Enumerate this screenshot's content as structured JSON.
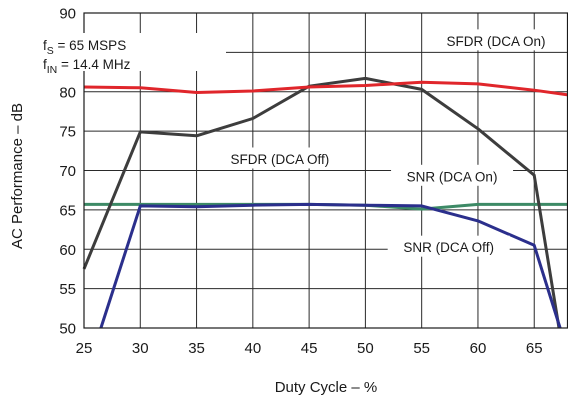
{
  "chart_data": {
    "type": "line",
    "xlabel": "Duty Cycle – %",
    "ylabel": "AC Performance – dB",
    "xlim": [
      25,
      68
    ],
    "ylim": [
      50,
      90
    ],
    "xticks": [
      25,
      30,
      35,
      40,
      45,
      50,
      55,
      60,
      65
    ],
    "yticks": [
      50,
      55,
      60,
      65,
      70,
      75,
      80,
      85,
      90
    ],
    "grid": true,
    "annotations": {
      "fs": {
        "prefix": "f",
        "sub": "S",
        "suffix": " = 65 MSPS"
      },
      "fin": {
        "prefix": "f",
        "sub": "IN",
        "suffix": " = 14.4 MHz"
      }
    },
    "series": [
      {
        "name": "SFDR (DCA On)",
        "color": "#e0262b",
        "x": [
          25,
          30,
          35,
          40,
          45,
          50,
          55,
          60,
          65,
          68
        ],
        "y": [
          80.6,
          80.5,
          79.9,
          80.1,
          80.6,
          80.8,
          81.2,
          81.0,
          80.2,
          79.6
        ]
      },
      {
        "name": "SFDR (DCA Off)",
        "color": "#3d3d3d",
        "x": [
          25,
          30,
          35,
          40,
          45,
          50,
          55,
          60,
          65,
          67.2
        ],
        "y": [
          57.5,
          74.9,
          74.4,
          76.6,
          80.7,
          81.7,
          80.3,
          75.3,
          69.4,
          50
        ]
      },
      {
        "name": "SNR (DCA On)",
        "color": "#3d8a66",
        "x": [
          25,
          30,
          35,
          40,
          45,
          50,
          55,
          60,
          65,
          68
        ],
        "y": [
          65.7,
          65.7,
          65.7,
          65.7,
          65.7,
          65.6,
          65.1,
          65.7,
          65.7,
          65.7
        ]
      },
      {
        "name": "SNR (DCA Off)",
        "color": "#2b2f8c",
        "x": [
          26.5,
          30,
          35,
          40,
          45,
          50,
          55,
          60,
          65,
          67.3
        ],
        "y": [
          50,
          65.5,
          65.4,
          65.6,
          65.7,
          65.6,
          65.5,
          63.6,
          60.5,
          50
        ]
      }
    ]
  }
}
